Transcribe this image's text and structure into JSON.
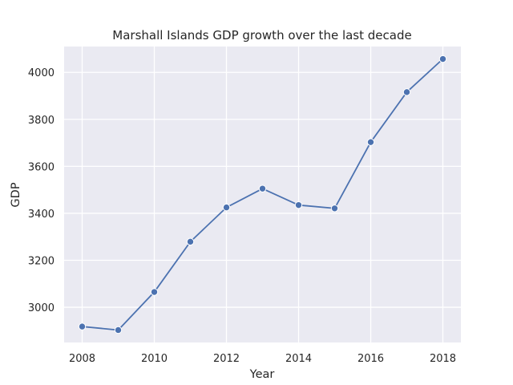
{
  "chart_data": {
    "type": "line",
    "title": "Marshall Islands GDP growth over the last decade",
    "xlabel": "Year",
    "ylabel": "GDP",
    "x": [
      2008,
      2009,
      2010,
      2011,
      2012,
      2013,
      2014,
      2015,
      2016,
      2017,
      2018
    ],
    "series": [
      {
        "values": [
          2918,
          2903,
          3065,
          3279,
          3425,
          3505,
          3435,
          3421,
          3703,
          3916,
          4057
        ],
        "color": "#4c72b0"
      }
    ],
    "xlim": [
      2007.5,
      2018.5
    ],
    "ylim": [
      2850,
      4110
    ],
    "xticks": [
      2008,
      2010,
      2012,
      2014,
      2016,
      2018
    ],
    "yticks": [
      3000,
      3200,
      3400,
      3600,
      3800,
      4000
    ],
    "grid": true,
    "background": "#eaeaf2",
    "grid_color": "#ffffff",
    "marker": "circle"
  }
}
